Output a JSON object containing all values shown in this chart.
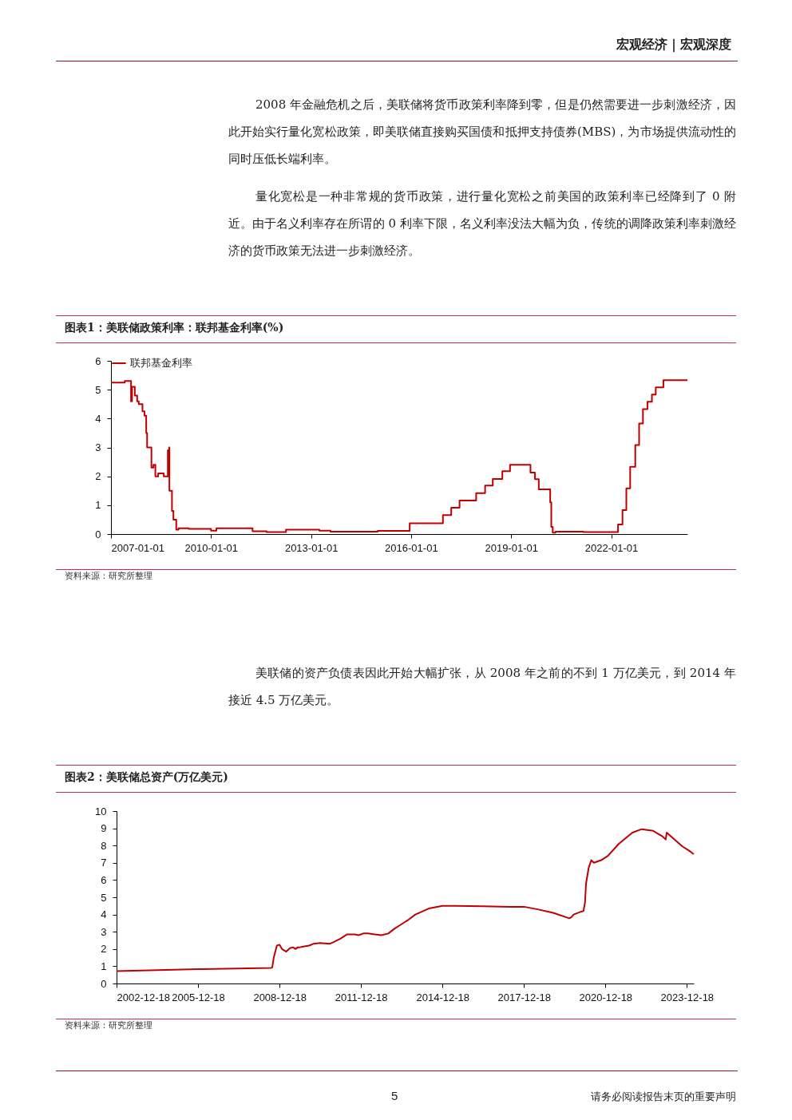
{
  "chart_data": [
    {
      "type": "step",
      "title": "图表1：美联储政策利率：联邦基金利率(%)",
      "annotations": [
        "宏观经济｜宏观深度",
        "2008 年金融危机之后，美联储将货币政策利率降到零，但是仍然需要进一步刺激经济，因此开始实行量化宽松政策，即美联储直接购买国债和抵押支持债券(MBS)，为市场提供流动性的同时压低长端利率。",
        "量化宽松是一种非常规的货币政策，进行量化宽松之前美国的政策利率已经降到了 0 附近。由于名义利率存在所谓的 0 利率下限，名义利率没法大幅为负，传统的调降政策利率刺激经济的货币政策无法进一步刺激经济。",
        "资料来源：研究所整理"
      ],
      "series": [
        {
          "name": "联邦基金利率",
          "color": "#c00000",
          "x": [
            "2007-01-01",
            "2007-06-01",
            "2007-08-09",
            "2007-08-20",
            "2007-09-19",
            "2007-10-15",
            "2007-11-01",
            "2007-12-12",
            "2008-01-03",
            "2008-01-22",
            "2008-02-01",
            "2008-03-19",
            "2008-04-10",
            "2008-05-01",
            "2008-06-01",
            "2008-08-01",
            "2008-09-15",
            "2008-09-20",
            "2008-09-30",
            "2008-10-02",
            "2008-10-30",
            "2008-11-15",
            "2008-12-16",
            "2009-01-10",
            "2009-05-01",
            "2010-01-01",
            "2010-03-01",
            "2011-04-01",
            "2011-09-01",
            "2012-04-01",
            "2013-04-01",
            "2013-08-01",
            "2015-01-01",
            "2015-12-17",
            "2016-12-15",
            "2017-03-16",
            "2017-06-15",
            "2017-12-14",
            "2018-03-22",
            "2018-06-14",
            "2018-09-27",
            "2018-12-20",
            "2019-08-01",
            "2019-09-19",
            "2019-10-31",
            "2020-03-04",
            "2020-03-16",
            "2020-04-01",
            "2020-05-01",
            "2021-03-01",
            "2022-03-17",
            "2022-05-05",
            "2022-06-16",
            "2022-07-28",
            "2022-09-22",
            "2022-11-03",
            "2022-12-15",
            "2023-02-02",
            "2023-03-23",
            "2023-05-04",
            "2023-07-27",
            "2024-04-15"
          ],
          "values": [
            5.25,
            5.3,
            4.6,
            5.1,
            4.8,
            4.6,
            4.5,
            4.25,
            4.1,
            3.5,
            3.0,
            2.3,
            2.4,
            2.0,
            2.1,
            2.0,
            2.9,
            2.0,
            3.0,
            1.5,
            0.8,
            0.5,
            0.15,
            0.2,
            0.18,
            0.12,
            0.2,
            0.1,
            0.07,
            0.15,
            0.12,
            0.08,
            0.11,
            0.37,
            0.66,
            0.91,
            1.16,
            1.42,
            1.68,
            1.91,
            2.18,
            2.4,
            2.13,
            1.9,
            1.55,
            1.1,
            0.25,
            0.05,
            0.08,
            0.07,
            0.33,
            0.83,
            1.58,
            2.33,
            3.08,
            3.83,
            4.33,
            4.58,
            4.83,
            5.08,
            5.33,
            5.33
          ]
        }
      ],
      "xlim": [
        "2007-01-01",
        "2024-04-15"
      ],
      "xticks": [
        "2007-01-01",
        "2010-01-01",
        "2013-01-01",
        "2016-01-01",
        "2019-01-01",
        "2022-01-01"
      ],
      "ylim": [
        0,
        6
      ],
      "yticks": [
        0,
        1,
        2,
        3,
        4,
        5,
        6
      ],
      "legend": "top",
      "grid": false
    },
    {
      "type": "line",
      "title": "图表2：美联储总资产(万亿美元)",
      "annotations": [
        "美联储的资产负债表因此开始大幅扩张，从 2008 年之前的不到 1 万亿美元，到 2014 年接近 4.5 万亿美元。",
        "资料来源：研究所整理",
        "请务必阅读报告末页的重要声明",
        "5"
      ],
      "series": [
        {
          "color": "#c00000",
          "x": [
            "2002-12-18",
            "2005-12-18",
            "2008-08-20",
            "2008-09-10",
            "2008-10-01",
            "2008-11-12",
            "2008-12-18",
            "2009-01-20",
            "2009-03-18",
            "2009-05-06",
            "2009-06-17",
            "2009-07-22",
            "2009-08-19",
            "2009-09-16",
            "2009-11-18",
            "2010-01-20",
            "2010-03-17",
            "2010-06-16",
            "2010-10-20",
            "2010-12-15",
            "2011-03-16",
            "2011-06-15",
            "2011-09-21",
            "2011-11-16",
            "2012-01-18",
            "2012-03-21",
            "2012-06-20",
            "2012-09-19",
            "2012-12-19",
            "2013-03-20",
            "2013-06-19",
            "2013-09-18",
            "2013-12-18",
            "2014-06-18",
            "2014-12-17",
            "2015-06-17",
            "2016-06-15",
            "2017-06-21",
            "2017-12-20",
            "2018-06-20",
            "2019-01-16",
            "2019-08-21",
            "2019-09-18",
            "2019-10-16",
            "2020-01-15",
            "2020-02-26",
            "2020-03-18",
            "2020-04-01",
            "2020-05-06",
            "2020-06-10",
            "2020-07-15",
            "2020-10-21",
            "2021-01-20",
            "2021-06-16",
            "2021-12-15",
            "2022-04-20",
            "2022-09-21",
            "2023-01-18",
            "2023-03-08",
            "2023-03-22",
            "2023-06-21",
            "2023-10-18",
            "2024-01-17",
            "2024-03-20"
          ],
          "values": [
            0.72,
            0.83,
            0.9,
            0.92,
            1.5,
            2.2,
            2.25,
            2.0,
            1.85,
            2.05,
            2.1,
            2.0,
            2.1,
            2.1,
            2.15,
            2.2,
            2.3,
            2.35,
            2.3,
            2.4,
            2.6,
            2.85,
            2.85,
            2.8,
            2.9,
            2.9,
            2.85,
            2.8,
            2.9,
            3.2,
            3.45,
            3.7,
            4.0,
            4.35,
            4.5,
            4.5,
            4.48,
            4.45,
            4.45,
            4.3,
            4.1,
            3.78,
            3.85,
            4.0,
            4.15,
            4.2,
            4.7,
            5.8,
            6.7,
            7.15,
            7.0,
            7.15,
            7.4,
            8.1,
            8.75,
            8.95,
            8.85,
            8.55,
            8.35,
            8.75,
            8.4,
            7.95,
            7.7,
            7.5
          ]
        }
      ],
      "xlim": [
        "2002-12-18",
        "2024-03-20"
      ],
      "xticks": [
        "2002-12-18",
        "2005-12-18",
        "2008-12-18",
        "2011-12-18",
        "2014-12-18",
        "2017-12-18",
        "2020-12-18",
        "2023-12-18"
      ],
      "ylim": [
        0,
        10
      ],
      "yticks": [
        0,
        1,
        2,
        3,
        4,
        5,
        6,
        7,
        8,
        9,
        10
      ],
      "grid": false
    }
  ]
}
